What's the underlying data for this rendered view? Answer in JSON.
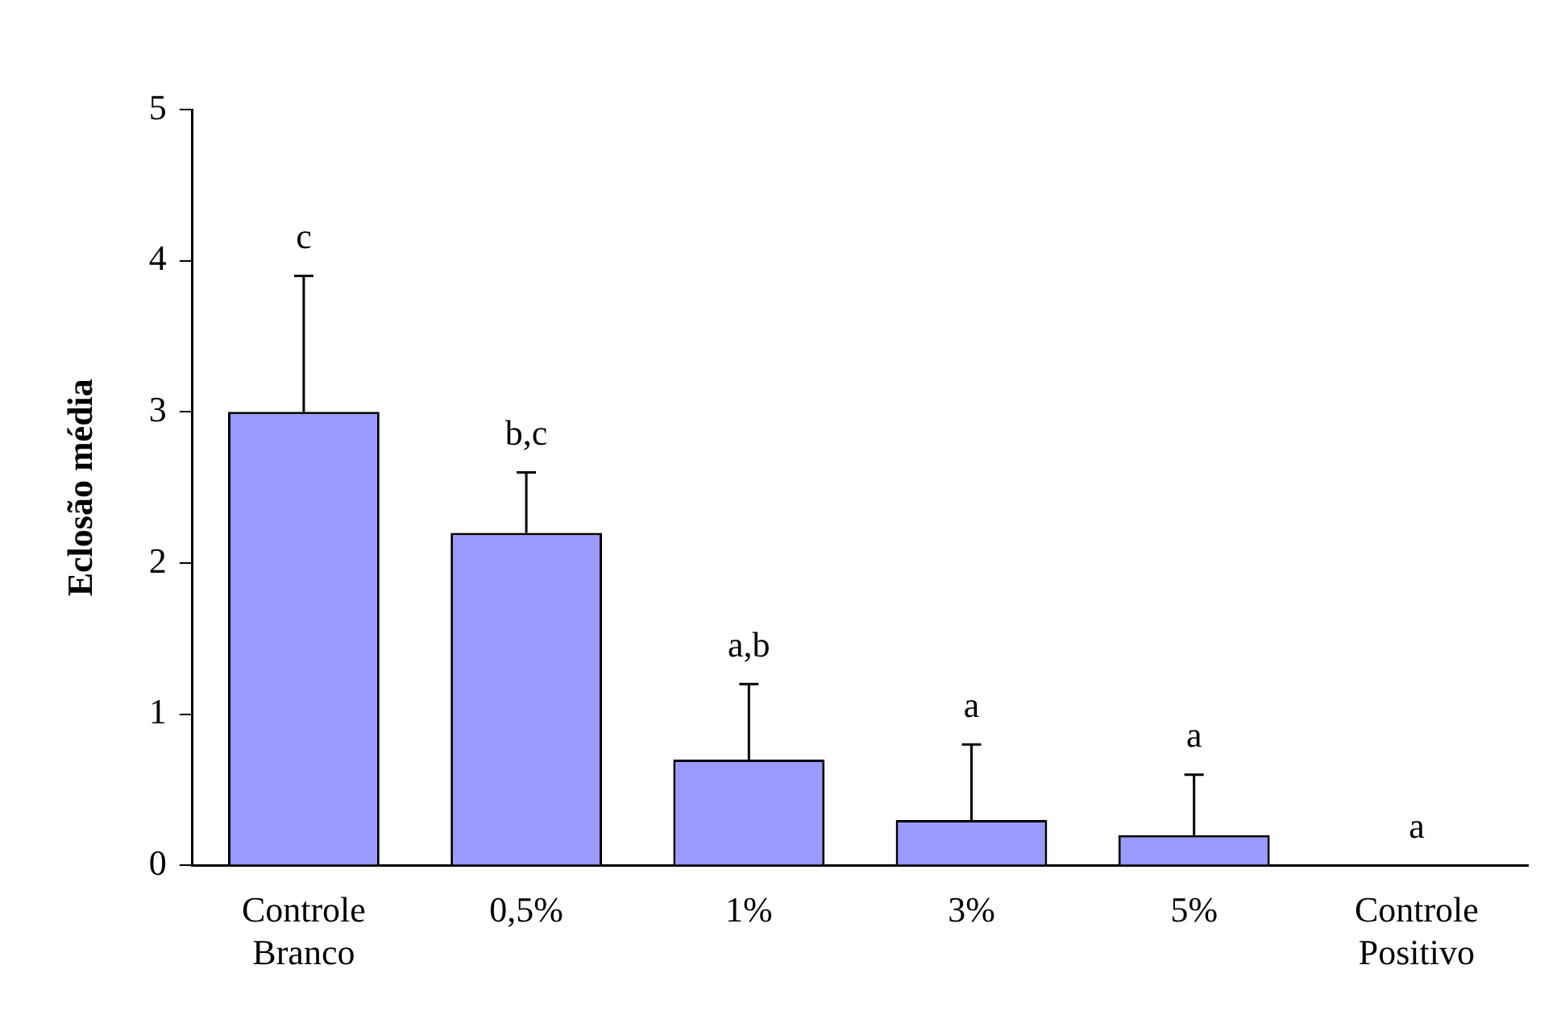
{
  "chart_data": {
    "type": "bar",
    "ylabel": "Eclosão média",
    "categories": [
      "Controle Branco",
      "0,5%",
      "1%",
      "3%",
      "5%",
      "Controle Positivo"
    ],
    "values": [
      3.0,
      2.2,
      0.7,
      0.3,
      0.2,
      0
    ],
    "errors": [
      [
        3.0,
        3.9
      ],
      [
        2.2,
        2.6
      ],
      [
        0.7,
        1.2
      ],
      [
        0.3,
        0.8
      ],
      [
        0.2,
        0.6
      ],
      null
    ],
    "color": "#9999ff",
    "ylim": [
      0,
      5
    ],
    "yticks": [
      0,
      1,
      2,
      3,
      4,
      5
    ],
    "grid": false,
    "legend": false,
    "annotations": [
      "c",
      "b,c",
      "a,b",
      "a",
      "a",
      "a"
    ]
  }
}
